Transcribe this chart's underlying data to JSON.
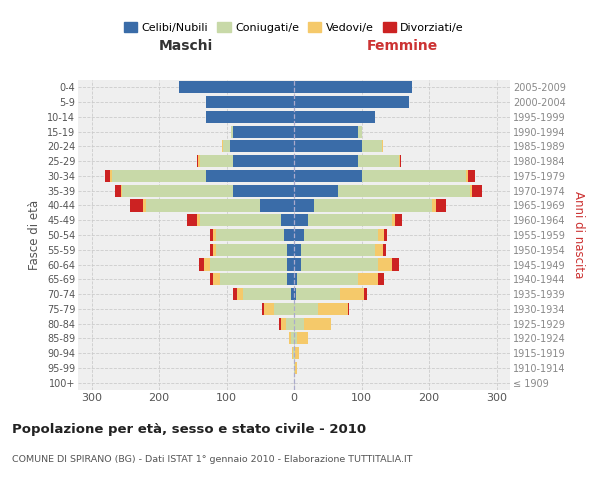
{
  "age_groups": [
    "100+",
    "95-99",
    "90-94",
    "85-89",
    "80-84",
    "75-79",
    "70-74",
    "65-69",
    "60-64",
    "55-59",
    "50-54",
    "45-49",
    "40-44",
    "35-39",
    "30-34",
    "25-29",
    "20-24",
    "15-19",
    "10-14",
    "5-9",
    "0-4"
  ],
  "birth_years": [
    "≤ 1909",
    "1910-1914",
    "1915-1919",
    "1920-1924",
    "1925-1929",
    "1930-1934",
    "1935-1939",
    "1940-1944",
    "1945-1949",
    "1950-1954",
    "1955-1959",
    "1960-1964",
    "1965-1969",
    "1970-1974",
    "1975-1979",
    "1980-1984",
    "1985-1989",
    "1990-1994",
    "1995-1999",
    "2000-2004",
    "2005-2009"
  ],
  "maschi": {
    "celibi": [
      0,
      0,
      0,
      0,
      0,
      0,
      5,
      10,
      10,
      10,
      15,
      20,
      50,
      90,
      130,
      90,
      95,
      90,
      130,
      130,
      170
    ],
    "coniugati": [
      0,
      0,
      2,
      5,
      12,
      30,
      70,
      100,
      115,
      105,
      100,
      120,
      170,
      165,
      140,
      50,
      10,
      3,
      0,
      0,
      0
    ],
    "vedovi": [
      0,
      0,
      1,
      3,
      8,
      15,
      10,
      10,
      8,
      5,
      5,
      3,
      3,
      2,
      2,
      2,
      2,
      0,
      0,
      0,
      0
    ],
    "divorziati": [
      0,
      0,
      0,
      0,
      2,
      2,
      5,
      5,
      8,
      5,
      5,
      15,
      20,
      8,
      8,
      2,
      0,
      0,
      0,
      0,
      0
    ]
  },
  "femmine": {
    "nubili": [
      0,
      0,
      0,
      0,
      0,
      0,
      3,
      5,
      10,
      10,
      15,
      20,
      30,
      65,
      100,
      95,
      100,
      95,
      120,
      170,
      175
    ],
    "coniugate": [
      0,
      2,
      2,
      5,
      15,
      35,
      65,
      90,
      115,
      110,
      110,
      125,
      175,
      195,
      155,
      60,
      30,
      5,
      0,
      0,
      0
    ],
    "vedove": [
      0,
      2,
      5,
      15,
      40,
      45,
      35,
      30,
      20,
      12,
      8,
      5,
      5,
      3,
      3,
      2,
      2,
      0,
      0,
      0,
      0
    ],
    "divorziate": [
      0,
      0,
      0,
      0,
      0,
      2,
      5,
      8,
      10,
      5,
      5,
      10,
      15,
      15,
      10,
      2,
      0,
      0,
      0,
      0,
      0
    ]
  },
  "colors": {
    "celibi": "#3a6ca8",
    "coniugati": "#c8d9a8",
    "vedovi": "#f5c96a",
    "divorziati": "#cc2222"
  },
  "title": "Popolazione per età, sesso e stato civile - 2010",
  "subtitle": "COMUNE DI SPIRANO (BG) - Dati ISTAT 1° gennaio 2010 - Elaborazione TUTTITALIA.IT",
  "xlabel_left": "Maschi",
  "xlabel_right": "Femmine",
  "ylabel_left": "Fasce di età",
  "ylabel_right": "Anni di nascita",
  "xlim": 320,
  "legend_labels": [
    "Celibi/Nubili",
    "Coniugati/e",
    "Vedovi/e",
    "Divorziati/e"
  ],
  "background_color": "#ffffff",
  "plot_bg_color": "#efefef",
  "grid_color": "#cccccc"
}
